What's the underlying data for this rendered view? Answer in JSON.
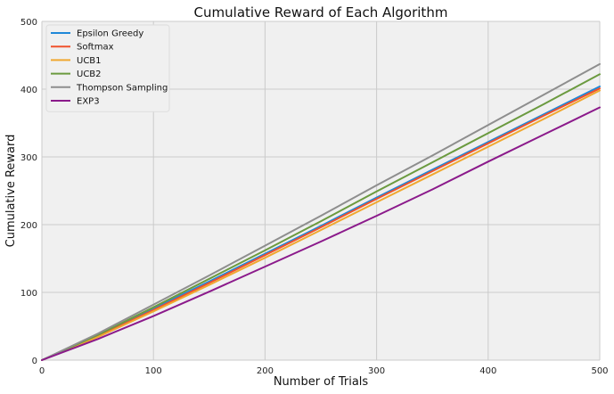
{
  "chart_data": {
    "type": "line",
    "title": "Cumulative Reward of Each Algorithm",
    "xlabel": "Number of Trials",
    "ylabel": "Cumulative Reward",
    "xlim": [
      0,
      500
    ],
    "ylim": [
      0,
      500
    ],
    "xticks": [
      0,
      100,
      200,
      300,
      400,
      500
    ],
    "yticks": [
      0,
      100,
      200,
      300,
      400,
      500
    ],
    "grid": true,
    "legend_position": "top-left",
    "x": [
      0,
      50,
      100,
      150,
      200,
      250,
      300,
      350,
      400,
      450,
      500
    ],
    "series": [
      {
        "name": "Epsilon Greedy",
        "color": "#1f88d8",
        "values": [
          0,
          36,
          76,
          116,
          157,
          198,
          240,
          281,
          322,
          363,
          404
        ]
      },
      {
        "name": "Softmax",
        "color": "#f0522c",
        "values": [
          0,
          35,
          74,
          114,
          155,
          196,
          238,
          279,
          320,
          361,
          401
        ]
      },
      {
        "name": "UCB1",
        "color": "#f0a830",
        "values": [
          0,
          34,
          72,
          111,
          151,
          192,
          233,
          274,
          315,
          356,
          398
        ]
      },
      {
        "name": "UCB2",
        "color": "#6b9a3f",
        "values": [
          0,
          37,
          78,
          120,
          162,
          205,
          249,
          292,
          335,
          378,
          422
        ]
      },
      {
        "name": "Thompson Sampling",
        "color": "#8e8e8e",
        "values": [
          0,
          39,
          82,
          125,
          169,
          213,
          258,
          302,
          347,
          392,
          437
        ]
      },
      {
        "name": "EXP3",
        "color": "#8b1a8b",
        "values": [
          0,
          31,
          65,
          101,
          138,
          175,
          213,
          252,
          293,
          333,
          373
        ]
      }
    ]
  }
}
